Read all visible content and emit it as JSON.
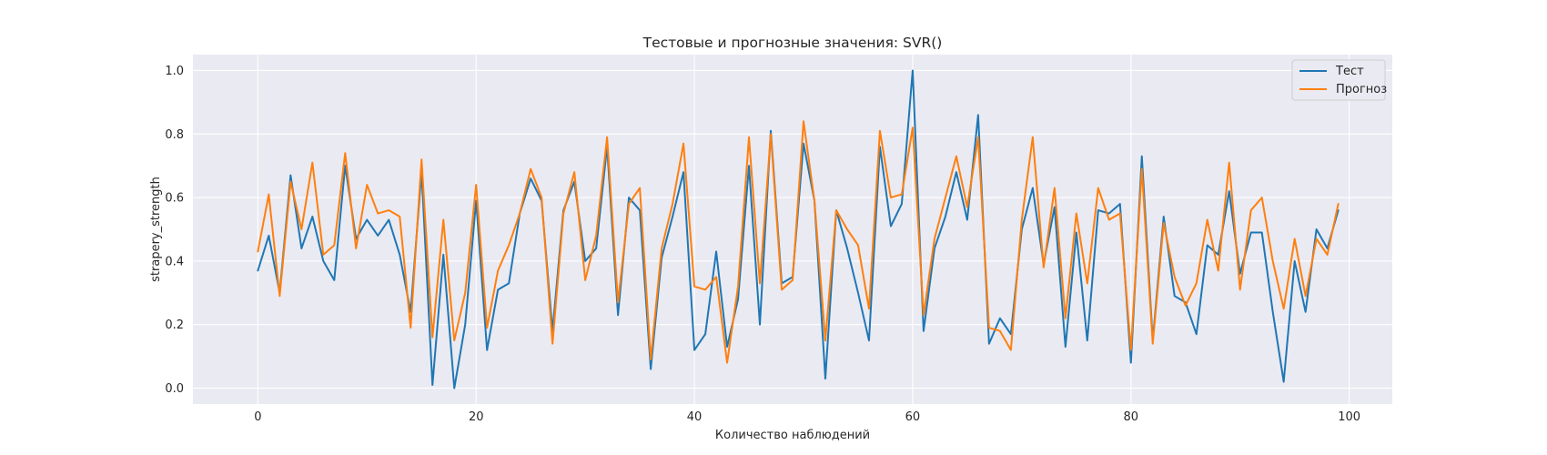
{
  "chart_data": {
    "type": "line",
    "title": "Тестовые и прогнозные значения: SVR()",
    "xlabel": "Количество наблюдений",
    "ylabel": "strapery_strength",
    "xlim": [
      -5.95,
      103.95
    ],
    "ylim": [
      -0.05,
      1.05
    ],
    "xticks": [
      0,
      20,
      40,
      60,
      80,
      100
    ],
    "yticks": [
      0.0,
      0.2,
      0.4,
      0.6,
      0.8,
      1.0
    ],
    "xtick_labels": [
      "0",
      "20",
      "40",
      "60",
      "80",
      "100"
    ],
    "ytick_labels": [
      "0.0",
      "0.2",
      "0.4",
      "0.6",
      "0.8",
      "1.0"
    ],
    "grid": true,
    "legend_position": "top-right",
    "series": [
      {
        "name": "Тест",
        "color": "#1f77b4",
        "values": [
          0.37,
          0.48,
          0.3,
          0.67,
          0.44,
          0.54,
          0.4,
          0.34,
          0.7,
          0.47,
          0.53,
          0.48,
          0.53,
          0.42,
          0.24,
          0.68,
          0.01,
          0.42,
          0.0,
          0.2,
          0.59,
          0.12,
          0.31,
          0.33,
          0.55,
          0.66,
          0.59,
          0.18,
          0.56,
          0.65,
          0.4,
          0.44,
          0.76,
          0.23,
          0.6,
          0.56,
          0.06,
          0.41,
          0.54,
          0.68,
          0.12,
          0.17,
          0.43,
          0.13,
          0.28,
          0.7,
          0.2,
          0.81,
          0.33,
          0.35,
          0.77,
          0.59,
          0.03,
          0.56,
          0.44,
          0.3,
          0.15,
          0.76,
          0.51,
          0.58,
          1.0,
          0.18,
          0.44,
          0.54,
          0.68,
          0.53,
          0.86,
          0.14,
          0.22,
          0.17,
          0.5,
          0.63,
          0.39,
          0.57,
          0.13,
          0.49,
          0.15,
          0.56,
          0.55,
          0.58,
          0.08,
          0.73,
          0.15,
          0.54,
          0.29,
          0.27,
          0.17,
          0.45,
          0.42,
          0.62,
          0.36,
          0.49,
          0.49,
          0.24,
          0.02,
          0.4,
          0.24,
          0.5,
          0.44,
          0.56
        ]
      },
      {
        "name": "Прогноз",
        "color": "#ff7f0e",
        "values": [
          0.43,
          0.61,
          0.29,
          0.65,
          0.5,
          0.71,
          0.42,
          0.45,
          0.74,
          0.44,
          0.64,
          0.55,
          0.56,
          0.54,
          0.19,
          0.72,
          0.16,
          0.53,
          0.15,
          0.3,
          0.64,
          0.19,
          0.37,
          0.45,
          0.55,
          0.69,
          0.6,
          0.14,
          0.55,
          0.68,
          0.34,
          0.48,
          0.79,
          0.27,
          0.58,
          0.63,
          0.09,
          0.44,
          0.58,
          0.77,
          0.32,
          0.31,
          0.35,
          0.08,
          0.32,
          0.79,
          0.33,
          0.8,
          0.31,
          0.34,
          0.84,
          0.59,
          0.15,
          0.56,
          0.5,
          0.45,
          0.25,
          0.81,
          0.6,
          0.61,
          0.82,
          0.23,
          0.47,
          0.6,
          0.73,
          0.57,
          0.79,
          0.19,
          0.18,
          0.12,
          0.53,
          0.79,
          0.38,
          0.63,
          0.22,
          0.55,
          0.33,
          0.63,
          0.53,
          0.55,
          0.12,
          0.69,
          0.14,
          0.52,
          0.35,
          0.26,
          0.33,
          0.53,
          0.37,
          0.71,
          0.31,
          0.56,
          0.6,
          0.4,
          0.25,
          0.47,
          0.29,
          0.47,
          0.42,
          0.58
        ]
      }
    ]
  }
}
